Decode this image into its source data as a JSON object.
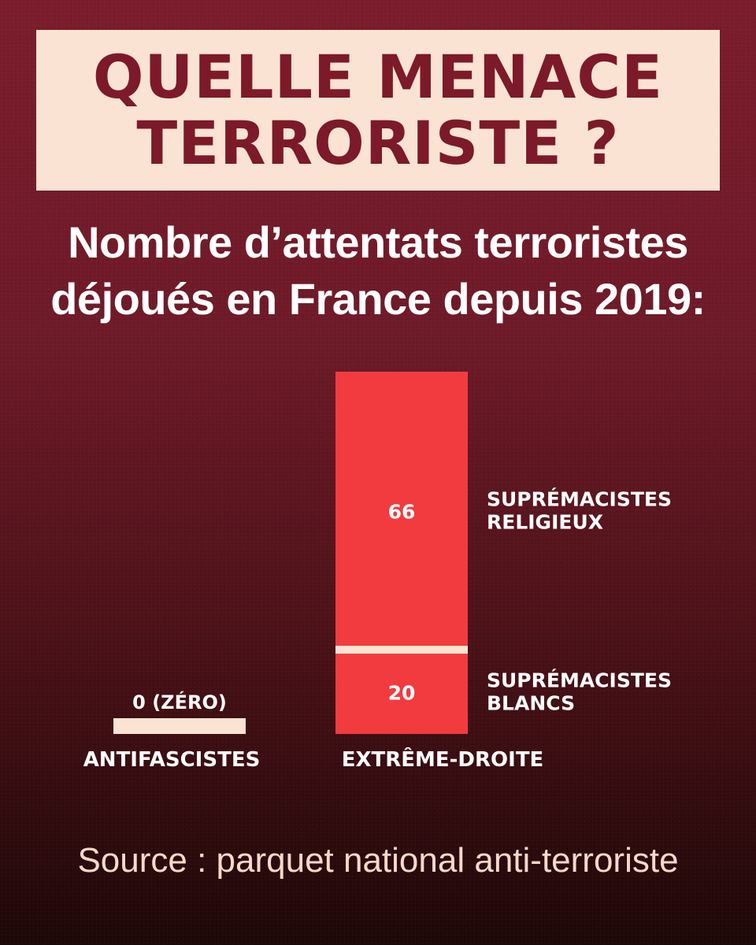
{
  "title": {
    "line1": "QUELLE MENACE",
    "line2": "TERRORISTE ?"
  },
  "subtitle": {
    "line1": "Nombre d’attentats terroristes",
    "line2": "déjoués en France depuis 2019:"
  },
  "source": "Source : parquet national anti-terroriste",
  "colors": {
    "background": "#6e1a28",
    "title_box": "#fbe3d4",
    "title_text": "#7c1a2a",
    "bar": "#f23b3e",
    "bar_labels": "#ffffff",
    "divider": "#fbe3d4"
  },
  "chart_data": {
    "type": "bar",
    "stacked": true,
    "categories": [
      "ANTIFASCISTES",
      "EXTRÊME-DROITE"
    ],
    "series": [
      {
        "name": "SUPRÉMACISTES BLANCS",
        "label": [
          "SUPRÉMACISTES",
          "BLANCS"
        ],
        "values": [
          0,
          20
        ]
      },
      {
        "name": "SUPRÉMACISTES RELIGIEUX",
        "label": [
          "SUPRÉMACISTES",
          "RELIGIEUX"
        ],
        "values": [
          0,
          66
        ]
      }
    ],
    "totals": [
      0,
      86
    ],
    "value_labels": {
      "ANTIFASCISTES": "0 (ZÉRO)"
    },
    "ylim": [
      0,
      86
    ],
    "grid": false,
    "axes_visible": false
  }
}
